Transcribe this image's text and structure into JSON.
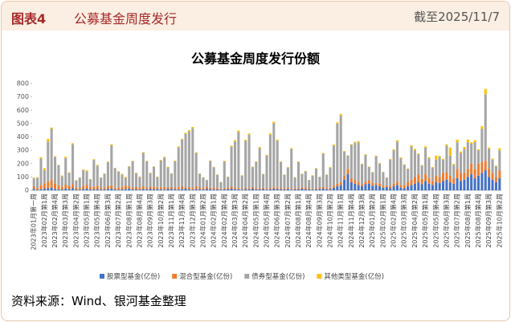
{
  "header": {
    "label": "图表4",
    "title": "公募基金周度发行",
    "date": "截至2025/11/7"
  },
  "source": "资料来源：Wind、银河基金整理",
  "chart_data": {
    "type": "stacked_bar",
    "title": "公募基金周度发行份额",
    "categories": [
      "2023年01月第一周",
      null,
      null,
      "2023年02月第1周",
      null,
      null,
      "2023年02月第4周",
      null,
      null,
      "2023年03月第3周",
      null,
      null,
      "2023年04月第2周",
      null,
      null,
      "2023年05月第1周",
      null,
      null,
      "2023年05月第4周",
      null,
      null,
      "2023年06月第3周",
      null,
      null,
      "2023年07月第2周",
      null,
      null,
      "2023年08月第1周",
      null,
      null,
      "2023年08月第4周",
      null,
      null,
      "2023年09月第3周",
      null,
      null,
      "2023年10月第2周",
      null,
      null,
      "2023年11月第1周",
      null,
      null,
      "2023年11月第4周",
      null,
      null,
      "2023年12月第3周",
      null,
      null,
      "2024年01月第2周",
      null,
      null,
      "2024年02月第1周",
      null,
      null,
      "2024年02月第4周",
      null,
      null,
      "2024年03月第3周",
      null,
      null,
      "2024年04月第2周",
      null,
      null,
      "2024年05月第1周",
      null,
      null,
      "2024年05月第4周",
      null,
      null,
      "2024年06月第3周",
      null,
      null,
      "2024年07月第2周",
      null,
      null,
      "2024年08月第1周",
      null,
      null,
      "2024年08月第4周",
      null,
      null,
      "2024年09月第3周",
      null,
      null,
      "2024年10月第2周",
      null,
      null,
      "2024年11月第1周",
      null,
      null,
      "2024年11月第4周",
      null,
      null,
      "2024年12月第3周",
      null,
      null,
      "2025年01月第2周",
      null,
      null,
      "2025年02月第1周",
      null,
      null,
      "2025年02月第4周",
      null,
      null,
      "2025年03月第3周",
      null,
      null,
      "2025年04月第2周",
      null,
      null,
      "2025年05月第1周",
      null,
      null,
      "2025年05月第4周",
      null,
      null,
      "2025年06月第3周",
      null,
      null,
      "2025年07月第2周",
      null,
      null,
      "2025年08月第1周",
      null,
      null,
      "2025年08月第4周",
      null,
      null,
      "2025年09月第3周",
      null,
      null,
      "2025年10月第2周"
    ],
    "series": [
      {
        "name": "股票型基金(亿份)",
        "color": "#4472c4",
        "values": [
          10,
          5,
          8,
          12,
          15,
          20,
          10,
          8,
          6,
          12,
          10,
          15,
          8,
          5,
          10,
          12,
          6,
          8,
          10,
          5,
          8,
          10,
          12,
          6,
          5,
          8,
          10,
          12,
          8,
          6,
          5,
          10,
          8,
          12,
          6,
          10,
          8,
          5,
          12,
          10,
          8,
          6,
          10,
          12,
          8,
          5,
          10,
          8,
          6,
          12,
          10,
          8,
          6,
          5,
          8,
          10,
          12,
          6,
          8,
          5,
          10,
          8,
          12,
          6,
          8,
          10,
          5,
          8,
          12,
          10,
          6,
          8,
          10,
          5,
          8,
          6,
          12,
          10,
          8,
          5,
          6,
          10,
          12,
          8,
          10,
          20,
          30,
          40,
          80,
          120,
          60,
          50,
          40,
          30,
          45,
          50,
          35,
          40,
          30,
          20,
          25,
          15,
          30,
          40,
          20,
          15,
          30,
          40,
          50,
          60,
          45,
          70,
          50,
          40,
          60,
          55,
          70,
          80,
          60,
          50,
          90,
          70,
          80,
          100,
          120,
          90,
          110,
          130,
          150,
          100,
          80,
          60,
          90
        ]
      },
      {
        "name": "混合型基金(亿份)",
        "color": "#ed7d31",
        "values": [
          20,
          10,
          30,
          40,
          50,
          60,
          40,
          30,
          20,
          30,
          20,
          30,
          15,
          10,
          20,
          30,
          15,
          20,
          25,
          10,
          15,
          20,
          25,
          10,
          15,
          20,
          25,
          15,
          10,
          20,
          15,
          20,
          10,
          15,
          20,
          10,
          15,
          20,
          10,
          15,
          10,
          15,
          20,
          10,
          15,
          10,
          20,
          15,
          10,
          15,
          10,
          15,
          10,
          5,
          8,
          10,
          15,
          10,
          8,
          5,
          10,
          8,
          12,
          6,
          8,
          10,
          5,
          8,
          10,
          12,
          6,
          8,
          10,
          5,
          8,
          6,
          10,
          12,
          8,
          5,
          6,
          10,
          12,
          8,
          10,
          15,
          20,
          20,
          30,
          40,
          30,
          25,
          20,
          15,
          20,
          25,
          20,
          15,
          20,
          15,
          10,
          15,
          20,
          25,
          20,
          25,
          30,
          40,
          50,
          60,
          40,
          50,
          40,
          30,
          50,
          45,
          60,
          55,
          50,
          40,
          70,
          60,
          50,
          60,
          80,
          70,
          90,
          80,
          70,
          60,
          50,
          40,
          60
        ]
      },
      {
        "name": "债券型基金(亿份)",
        "color": "#a5a5a5",
        "values": [
          60,
          80,
          200,
          100,
          300,
          380,
          200,
          150,
          80,
          200,
          100,
          300,
          50,
          80,
          120,
          100,
          60,
          200,
          150,
          80,
          100,
          180,
          300,
          150,
          120,
          90,
          60,
          150,
          200,
          100,
          80,
          250,
          200,
          100,
          150,
          80,
          200,
          220,
          150,
          100,
          200,
          300,
          350,
          400,
          420,
          450,
          250,
          100,
          80,
          50,
          200,
          150,
          100,
          50,
          200,
          80,
          300,
          350,
          420,
          100,
          350,
          400,
          150,
          200,
          300,
          100,
          250,
          400,
          480,
          350,
          200,
          100,
          150,
          300,
          80,
          200,
          100,
          120,
          60,
          100,
          150,
          80,
          250,
          100,
          150,
          300,
          450,
          500,
          180,
          100,
          250,
          280,
          300,
          150,
          200,
          100,
          80,
          200,
          150,
          100,
          60,
          200,
          250,
          300,
          200,
          150,
          100,
          250,
          200,
          150,
          100,
          200,
          150,
          100,
          120,
          150,
          100,
          200,
          150,
          100,
          200,
          150,
          180,
          200,
          150,
          200,
          100,
          250,
          500,
          150,
          100,
          80,
          150
        ]
      },
      {
        "name": "其他类型基金(亿份)",
        "color": "#ffc000",
        "values": [
          5,
          3,
          10,
          15,
          20,
          10,
          5,
          3,
          5,
          10,
          5,
          8,
          3,
          2,
          5,
          8,
          3,
          5,
          6,
          2,
          3,
          5,
          8,
          2,
          3,
          5,
          6,
          4,
          3,
          5,
          4,
          6,
          3,
          5,
          4,
          3,
          5,
          6,
          4,
          3,
          5,
          8,
          6,
          10,
          8,
          10,
          5,
          3,
          2,
          1,
          4,
          3,
          3,
          2,
          5,
          3,
          8,
          10,
          12,
          3,
          8,
          10,
          4,
          5,
          8,
          3,
          6,
          10,
          12,
          8,
          5,
          3,
          4,
          6,
          2,
          4,
          3,
          3,
          2,
          3,
          4,
          2,
          5,
          3,
          4,
          8,
          10,
          12,
          5,
          3,
          6,
          8,
          8,
          4,
          5,
          3,
          2,
          5,
          4,
          3,
          2,
          5,
          8,
          10,
          6,
          5,
          4,
          8,
          10,
          6,
          5,
          10,
          8,
          5,
          30,
          8,
          6,
          10,
          60,
          8,
          20,
          10,
          15,
          20,
          10,
          15,
          8,
          20,
          40,
          10,
          8,
          5,
          15
        ]
      }
    ],
    "ylim": [
      0,
      800
    ],
    "yticks": [
      0,
      100,
      200,
      300,
      400,
      500,
      600,
      700,
      800
    ]
  }
}
